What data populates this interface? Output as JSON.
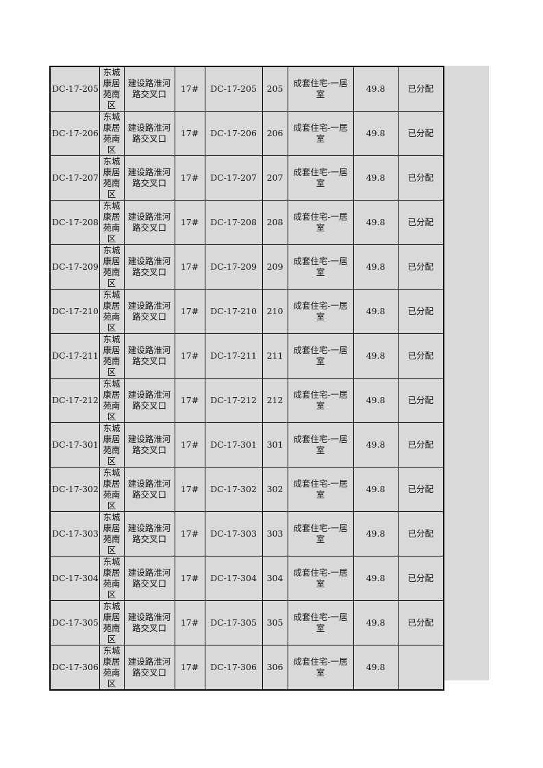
{
  "columns_count": 9,
  "rows": [
    [
      "DC-17-205",
      "东城康居苑南区",
      "建设路淮河路交叉口",
      "17#",
      "DC-17-205",
      "205",
      "成套住宅-一居室",
      "49.8",
      "已分配"
    ],
    [
      "DC-17-206",
      "东城康居苑南区",
      "建设路淮河路交叉口",
      "17#",
      "DC-17-206",
      "206",
      "成套住宅-一居室",
      "49.8",
      "已分配"
    ],
    [
      "DC-17-207",
      "东城康居苑南区",
      "建设路淮河路交叉口",
      "17#",
      "DC-17-207",
      "207",
      "成套住宅-一居室",
      "49.8",
      "已分配"
    ],
    [
      "DC-17-208",
      "东城康居苑南区",
      "建设路淮河路交叉口",
      "17#",
      "DC-17-208",
      "208",
      "成套住宅-一居室",
      "49.8",
      "已分配"
    ],
    [
      "DC-17-209",
      "东城康居苑南区",
      "建设路淮河路交叉口",
      "17#",
      "DC-17-209",
      "209",
      "成套住宅-一居室",
      "49.8",
      "已分配"
    ],
    [
      "DC-17-210",
      "东城康居苑南区",
      "建设路淮河路交叉口",
      "17#",
      "DC-17-210",
      "210",
      "成套住宅-一居室",
      "49.8",
      "已分配"
    ],
    [
      "DC-17-211",
      "东城康居苑南区",
      "建设路淮河路交叉口",
      "17#",
      "DC-17-211",
      "211",
      "成套住宅-一居室",
      "49.8",
      "已分配"
    ],
    [
      "DC-17-212",
      "东城康居苑南区",
      "建设路淮河路交叉口",
      "17#",
      "DC-17-212",
      "212",
      "成套住宅-一居室",
      "49.8",
      "已分配"
    ],
    [
      "DC-17-301",
      "东城康居苑南区",
      "建设路淮河路交叉口",
      "17#",
      "DC-17-301",
      "301",
      "成套住宅-一居室",
      "49.8",
      "已分配"
    ],
    [
      "DC-17-302",
      "东城康居苑南区",
      "建设路淮河路交叉口",
      "17#",
      "DC-17-302",
      "302",
      "成套住宅-一居室",
      "49.8",
      "已分配"
    ],
    [
      "DC-17-303",
      "东城康居苑南区",
      "建设路淮河路交叉口",
      "17#",
      "DC-17-303",
      "303",
      "成套住宅-一居室",
      "49.8",
      "已分配"
    ],
    [
      "DC-17-304",
      "东城康居苑南区",
      "建设路淮河路交叉口",
      "17#",
      "DC-17-304",
      "304",
      "成套住宅-一居室",
      "49.8",
      "已分配"
    ],
    [
      "DC-17-305",
      "东城康居苑南区",
      "建设路淮河路交叉口",
      "17#",
      "DC-17-305",
      "305",
      "成套住宅-一居室",
      "49.8",
      "已分配"
    ],
    [
      "DC-17-306",
      "东城康居苑南区",
      "建设路淮河路交叉口",
      "17#",
      "DC-17-306",
      "306",
      "成套住宅-一居室",
      "49.8",
      ""
    ]
  ],
  "colors": {
    "cell_bg": "#d9d9d9",
    "border": "#000000"
  }
}
